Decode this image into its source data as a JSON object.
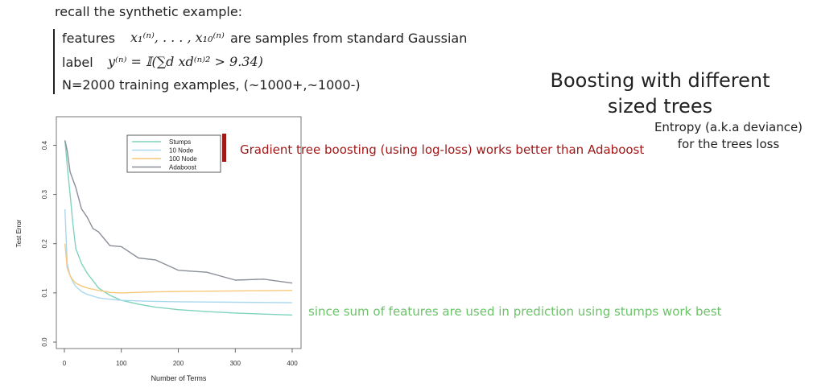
{
  "intro": "recall the synthetic example:",
  "features": {
    "label": "features",
    "math": "x₁⁽ⁿ⁾, . . . , x₁₀⁽ⁿ⁾",
    "desc": "are samples from standard Gaussian"
  },
  "label_line": {
    "label": "label",
    "math": "y⁽ⁿ⁾ = 𝕀(∑d xd⁽ⁿ⁾² > 9.34)"
  },
  "n_line": "N=2000 training examples, (~1000+,~1000-)",
  "title": [
    "Boosting with different",
    "sized trees"
  ],
  "entropy": [
    "Entropy (a.k.a deviance)",
    "for the trees loss"
  ],
  "annotations": {
    "red": "Gradient tree boosting (using log-loss) works better than Adaboost",
    "green": "since sum of features are used in prediction using stumps work best"
  },
  "colors": {
    "stumps": "#7fd3bd",
    "node10": "#a9d8ee",
    "node100": "#f6c97a",
    "adaboost": "#8a8f9a",
    "red": "#a01818",
    "green": "#6cc36a"
  },
  "chart_data": {
    "type": "line",
    "xlabel": "Number of Terms",
    "ylabel": "Test Error",
    "xlim": [
      0,
      400
    ],
    "ylim": [
      0,
      0.45
    ],
    "xticks": [
      0,
      100,
      200,
      300,
      400
    ],
    "yticks": [
      0.0,
      0.1,
      0.2,
      0.3,
      0.4
    ],
    "xtick_labels": [
      "0",
      "100",
      "200",
      "300",
      "400"
    ],
    "ytick_labels": [
      "0.0",
      "0.1",
      "0.2",
      "0.3",
      "0.4"
    ],
    "legend_position": "top-center",
    "series": [
      {
        "name": "Stumps",
        "color": "#7fd3bd",
        "x": [
          1,
          5,
          10,
          15,
          20,
          30,
          40,
          50,
          60,
          80,
          100,
          130,
          160,
          200,
          250,
          300,
          350,
          400
        ],
        "y": [
          0.41,
          0.36,
          0.3,
          0.24,
          0.19,
          0.16,
          0.14,
          0.125,
          0.11,
          0.095,
          0.085,
          0.077,
          0.071,
          0.066,
          0.062,
          0.059,
          0.057,
          0.055
        ]
      },
      {
        "name": "10 Node",
        "color": "#a9d8ee",
        "x": [
          1,
          5,
          10,
          15,
          20,
          30,
          40,
          60,
          80,
          100,
          150,
          200,
          300,
          400
        ],
        "y": [
          0.27,
          0.16,
          0.135,
          0.122,
          0.113,
          0.103,
          0.097,
          0.09,
          0.087,
          0.085,
          0.083,
          0.082,
          0.081,
          0.08
        ]
      },
      {
        "name": "100 Node",
        "color": "#f6c97a",
        "x": [
          1,
          5,
          10,
          15,
          20,
          30,
          40,
          60,
          80,
          100,
          150,
          200,
          300,
          400
        ],
        "y": [
          0.2,
          0.15,
          0.135,
          0.126,
          0.12,
          0.114,
          0.11,
          0.105,
          0.101,
          0.1,
          0.102,
          0.103,
          0.104,
          0.105
        ]
      },
      {
        "name": "Adaboost",
        "color": "#8a8f9a",
        "x": [
          1,
          5,
          10,
          20,
          30,
          40,
          50,
          60,
          80,
          100,
          130,
          160,
          200,
          250,
          300,
          350,
          400
        ],
        "y": [
          0.41,
          0.385,
          0.35,
          0.31,
          0.275,
          0.25,
          0.235,
          0.22,
          0.2,
          0.19,
          0.175,
          0.163,
          0.15,
          0.138,
          0.13,
          0.124,
          0.12
        ]
      }
    ]
  }
}
